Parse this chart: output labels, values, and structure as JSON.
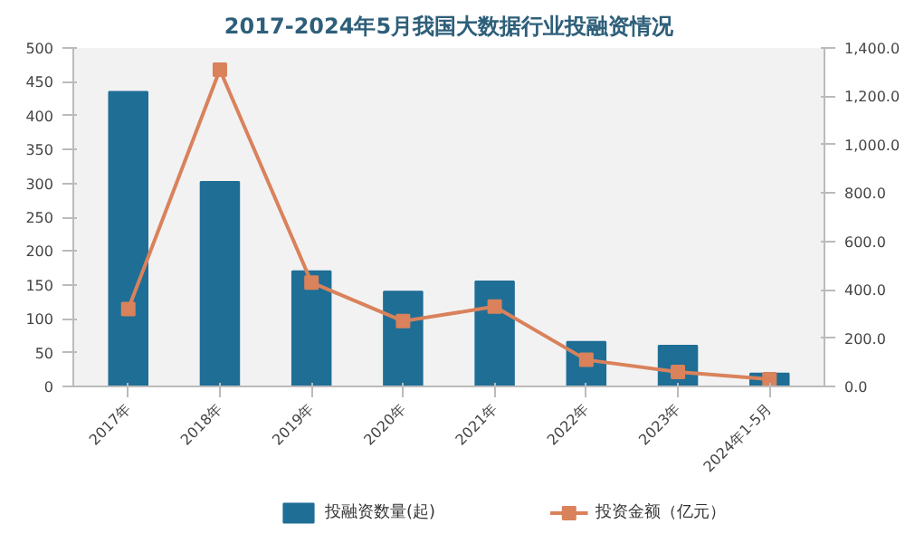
{
  "chart_data": {
    "type": "bar",
    "title": "2017-2024年5月我国大数据行业投融资情况",
    "categories": [
      "2017年",
      "2018年",
      "2019年",
      "2020年",
      "2021年",
      "2022年",
      "2023年",
      "2024年1-5月"
    ],
    "series": [
      {
        "name": "投融资数量(起)",
        "color": "#1f6e96",
        "values": [
          435,
          302,
          170,
          140,
          155,
          66,
          60,
          19
        ]
      },
      {
        "name": "投资金额（亿元）",
        "type": "line",
        "axis": "y2",
        "color": "#d9825b",
        "values": [
          320,
          1310,
          430,
          270,
          330,
          110,
          60,
          30
        ]
      }
    ],
    "ylim": [
      0,
      500
    ],
    "yticks": [
      0,
      50,
      100,
      150,
      200,
      250,
      300,
      350,
      400,
      450,
      500
    ],
    "y2lim": [
      0,
      1400
    ],
    "y2ticks": [
      {
        "value": 0,
        "label": "0.0"
      },
      {
        "value": 200,
        "label": "200.0"
      },
      {
        "value": 400,
        "label": "400.0"
      },
      {
        "value": 600,
        "label": "600.0"
      },
      {
        "value": 800,
        "label": "800.0"
      },
      {
        "value": 1000,
        "label": "1,000.0"
      },
      {
        "value": 1200,
        "label": "1,200.0"
      },
      {
        "value": 1400,
        "label": "1,400.0"
      }
    ],
    "marker": "square",
    "legend": "bottom",
    "grid": false
  }
}
